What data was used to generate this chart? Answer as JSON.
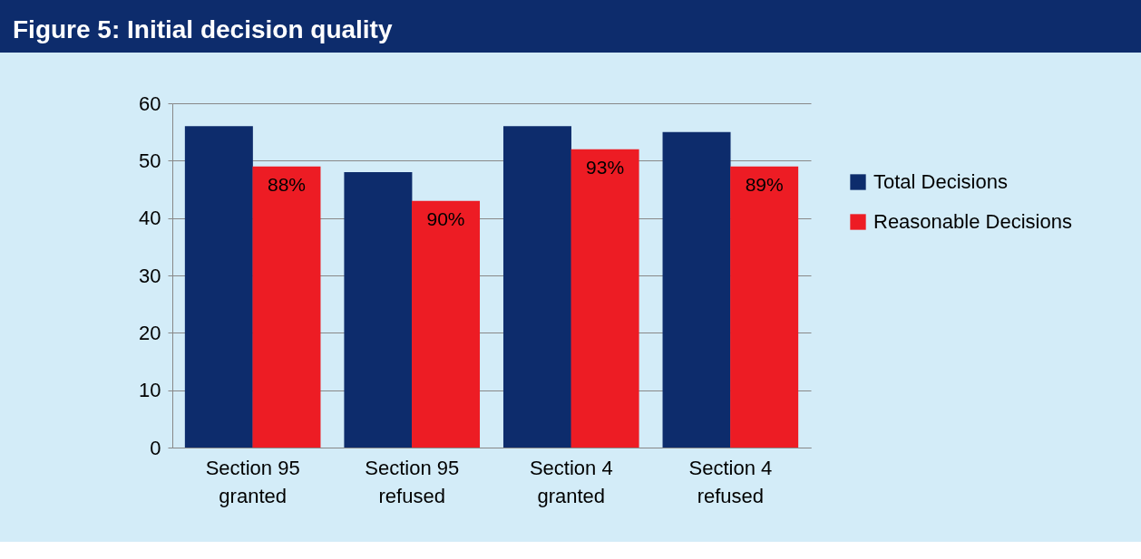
{
  "chart_data": {
    "type": "bar",
    "title": "Figure 5: Initial decision quality",
    "categories": [
      "Section 95 granted",
      "Section 95 refused",
      "Section 4 granted",
      "Section 4 refused"
    ],
    "series": [
      {
        "name": "Total Decisions",
        "color": "#0d2c6c",
        "values": [
          56,
          48,
          56,
          55
        ]
      },
      {
        "name": "Reasonable Decisions",
        "color": "#ed1c24",
        "values": [
          49,
          43,
          52,
          49
        ]
      }
    ],
    "annotations": [
      {
        "text": "88%",
        "x": "Section 95 granted",
        "y": 49
      },
      {
        "text": "90%",
        "x": "Section 95 refused",
        "y": 43
      },
      {
        "text": "93%",
        "x": "Section 4 granted",
        "y": 52
      },
      {
        "text": "89%",
        "x": "Section 4 refused",
        "y": 49
      }
    ],
    "ylim": [
      0,
      60
    ],
    "yticks": [
      0,
      10,
      20,
      30,
      40,
      50,
      60
    ],
    "grid": "y",
    "legend": "right"
  }
}
